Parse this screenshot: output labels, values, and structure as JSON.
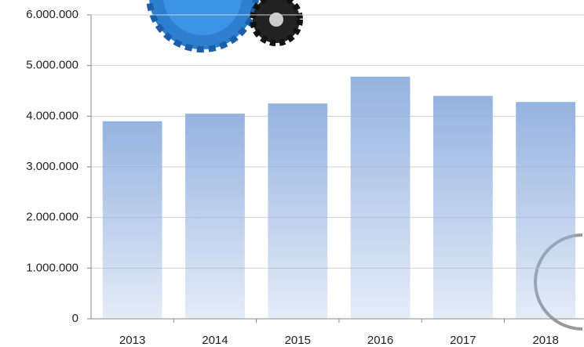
{
  "chart_data": {
    "type": "bar",
    "categories": [
      "2013",
      "2014",
      "2015",
      "2016",
      "2017",
      "2018"
    ],
    "values": [
      3900000,
      4050000,
      4250000,
      4780000,
      4400000,
      4280000
    ],
    "color": "#95b3e0",
    "ylim": [
      0,
      6000000
    ],
    "yticks": [
      0,
      {
        "value": 1000000,
        "label": "1.000.000"
      },
      {
        "value": 2000000,
        "label": "2.000.000"
      },
      {
        "value": 3000000,
        "label": "3.000.000"
      },
      {
        "value": 4000000,
        "label": "4.000.000"
      },
      {
        "value": 5000000,
        "label": "5.000.000"
      },
      {
        "value": 6000000,
        "label": "6.000.000"
      }
    ],
    "grid": true
  }
}
